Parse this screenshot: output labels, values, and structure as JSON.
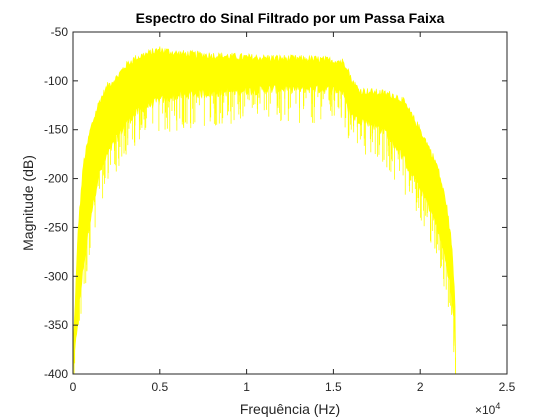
{
  "chart_data": {
    "type": "line",
    "title": "Espectro do Sinal Filtrado por um Passa Faixa",
    "xlabel": "Frequência (Hz)",
    "ylabel": "Magnitude (dB)",
    "xlim": [
      0,
      25000
    ],
    "ylim": [
      -400,
      -50
    ],
    "x_ticks": [
      0,
      5000,
      10000,
      15000,
      20000,
      25000
    ],
    "x_tick_labels": [
      "0",
      "0.5",
      "1",
      "1.5",
      "2",
      "2.5"
    ],
    "x_exponent_label": "×10",
    "x_exponent_power": "4",
    "y_ticks": [
      -400,
      -350,
      -300,
      -250,
      -200,
      -150,
      -100,
      -50
    ],
    "y_tick_labels": [
      "-400",
      "-350",
      "-300",
      "-250",
      "-200",
      "-150",
      "-100",
      "-50"
    ],
    "grid": false,
    "line_color": "#FFFF00",
    "series": [
      {
        "x": [
          0,
          300,
          600,
          1000,
          1500,
          2000,
          2500,
          3000,
          3500,
          4000,
          5000,
          6000,
          8000,
          10000,
          12000,
          14000,
          15500,
          15800,
          16000,
          16500,
          17000,
          18000,
          18500,
          19000,
          19500,
          20000,
          20500,
          21000,
          21500,
          21800,
          22000,
          22050
        ],
        "upper": [
          -380,
          -250,
          -185,
          -150,
          -122,
          -105,
          -97,
          -85,
          -78,
          -74,
          -68,
          -72,
          -74,
          -76,
          -77,
          -78,
          -80,
          -85,
          -98,
          -110,
          -111,
          -113,
          -115,
          -120,
          -135,
          -150,
          -168,
          -188,
          -225,
          -265,
          -320,
          -400
        ],
        "lower": [
          -400,
          -340,
          -290,
          -240,
          -195,
          -175,
          -160,
          -145,
          -135,
          -128,
          -120,
          -115,
          -112,
          -110,
          -108,
          -108,
          -110,
          -125,
          -135,
          -140,
          -142,
          -152,
          -165,
          -178,
          -195,
          -210,
          -228,
          -250,
          -285,
          -320,
          -360,
          -400
        ]
      }
    ]
  }
}
